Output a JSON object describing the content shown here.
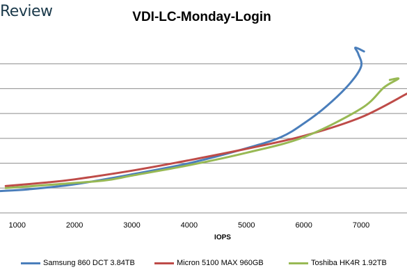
{
  "brand": {
    "text": "Review"
  },
  "chart_data": {
    "type": "line",
    "title": "VDI-LC-Monday-Login",
    "xlabel": "IOPS",
    "ylabel": "",
    "xlim": [
      700,
      7800
    ],
    "ylim": [
      0,
      7
    ],
    "x_ticks": [
      1000,
      2000,
      3000,
      4000,
      5000,
      6000,
      7000
    ],
    "y_gridlines": [
      1,
      2,
      3,
      4,
      5,
      6
    ],
    "grid": true,
    "legend_position": "bottom",
    "series": [
      {
        "name": "Samsung 860 DCT 3.84TB",
        "color": "#4a7ebb",
        "points": [
          [
            700,
            0.88
          ],
          [
            1200,
            0.95
          ],
          [
            2000,
            1.15
          ],
          [
            3000,
            1.55
          ],
          [
            4000,
            2.0
          ],
          [
            5000,
            2.6
          ],
          [
            5600,
            3.05
          ],
          [
            6000,
            3.6
          ],
          [
            6400,
            4.3
          ],
          [
            6800,
            5.2
          ],
          [
            7000,
            5.9
          ],
          [
            6950,
            6.4
          ],
          [
            6900,
            6.65
          ],
          [
            7050,
            6.5
          ]
        ]
      },
      {
        "name": "Micron 5100 MAX 960GB",
        "color": "#be4b48",
        "points": [
          [
            800,
            1.08
          ],
          [
            1500,
            1.22
          ],
          [
            2000,
            1.35
          ],
          [
            3000,
            1.7
          ],
          [
            4000,
            2.12
          ],
          [
            5000,
            2.58
          ],
          [
            6000,
            3.1
          ],
          [
            7000,
            3.85
          ],
          [
            7800,
            4.8
          ]
        ]
      },
      {
        "name": "Toshiba HK4R 1.92TB",
        "color": "#98b954",
        "points": [
          [
            800,
            1.0
          ],
          [
            1500,
            1.12
          ],
          [
            2500,
            1.3
          ],
          [
            3000,
            1.5
          ],
          [
            4000,
            1.92
          ],
          [
            5000,
            2.42
          ],
          [
            6000,
            3.05
          ],
          [
            7000,
            4.2
          ],
          [
            7400,
            5.05
          ],
          [
            7650,
            5.4
          ],
          [
            7500,
            5.35
          ]
        ]
      }
    ]
  }
}
